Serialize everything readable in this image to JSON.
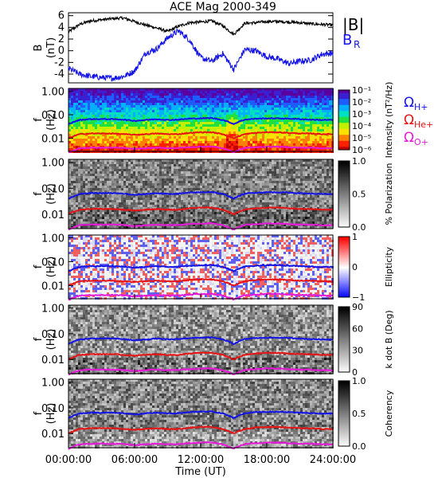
{
  "chart_data": [
    {
      "type": "line",
      "title": "ACE Mag 2000-349",
      "ylabel": "B (nT)",
      "ylim": [
        -5.5,
        6.5
      ],
      "yticks": [
        6,
        4,
        2,
        0,
        -2,
        -4
      ],
      "x_hours": [
        0,
        6,
        12,
        18,
        24
      ],
      "series": [
        {
          "name": "|B|",
          "color": "#000000",
          "x": [
            0,
            1,
            2,
            3,
            4,
            5,
            6,
            7,
            8,
            9,
            10,
            11,
            12,
            13,
            14,
            15,
            16,
            17,
            18,
            19,
            20,
            21,
            22,
            23,
            24
          ],
          "values": [
            3.2,
            4.5,
            5.1,
            5.3,
            5.5,
            5.6,
            5.0,
            4.4,
            3.9,
            3.3,
            4.2,
            4.8,
            4.9,
            5.1,
            4.3,
            2.8,
            4.7,
            4.8,
            5.0,
            5.0,
            4.9,
            4.8,
            4.6,
            4.5,
            4.4
          ]
        },
        {
          "name": "B",
          "label_sub": "R",
          "color": "#1414e6",
          "x": [
            0,
            1,
            2,
            3,
            4,
            5,
            6,
            7,
            8,
            9,
            10,
            11,
            12,
            13,
            14,
            15,
            16,
            17,
            18,
            19,
            20,
            21,
            22,
            23,
            24
          ],
          "values": [
            -3.0,
            -4.0,
            -4.4,
            -4.6,
            -4.7,
            -4.4,
            -3.5,
            -0.4,
            0.3,
            2.2,
            3.4,
            1.8,
            -1.2,
            -1.8,
            -0.5,
            -3.2,
            0.2,
            0.0,
            -1.0,
            -1.4,
            -2.2,
            -1.8,
            -1.6,
            -0.6,
            -0.4
          ]
        }
      ]
    },
    {
      "type": "heatmap",
      "ylabel": "f (Hz)",
      "yticks": [
        "1.00",
        "0.10",
        "0.01"
      ],
      "colorbar": {
        "label": "Intensity (nT²/Hz)",
        "ticks": [
          "10⁻¹",
          "10⁻²",
          "10⁻³",
          "10⁻⁴",
          "10⁻⁵",
          "10⁻⁶"
        ],
        "scale": "rainbow"
      },
      "legend": [
        {
          "symbol": "Ω",
          "sub": "H+",
          "color": "#1414e6"
        },
        {
          "symbol": "Ω",
          "sub": "He+",
          "color": "#e61414"
        },
        {
          "symbol": "Ω",
          "sub": "O+",
          "color": "#e619d9"
        }
      ]
    },
    {
      "type": "heatmap",
      "ylabel": "f (Hz)",
      "yticks": [
        "1.00",
        "0.10",
        "0.01"
      ],
      "colorbar": {
        "label": "% Polarization",
        "ticks": [
          "1.0",
          "0.5",
          "0.0"
        ],
        "scale": "grayscale"
      }
    },
    {
      "type": "heatmap",
      "ylabel": "f (Hz)",
      "yticks": [
        "1.00",
        "0.10",
        "0.01"
      ],
      "colorbar": {
        "label": "Ellipticity",
        "ticks": [
          "1",
          "0",
          "−1"
        ],
        "scale": "blue-white-red"
      }
    },
    {
      "type": "heatmap",
      "ylabel": "f (Hz)",
      "yticks": [
        "1.00",
        "0.10",
        "0.01"
      ],
      "colorbar": {
        "label": "k dot B (Deg)",
        "ticks": [
          "90",
          "60",
          "30",
          "0"
        ],
        "scale": "grayscale"
      }
    },
    {
      "type": "heatmap",
      "ylabel": "f (Hz)",
      "yticks": [
        "1.00",
        "0.10",
        "0.01"
      ],
      "colorbar": {
        "label": "Coherency",
        "ticks": [
          "1.0",
          "0.5",
          "0.0"
        ],
        "scale": "grayscale"
      }
    }
  ],
  "xaxis": {
    "ticks": [
      "00:00:00",
      "06:00:00",
      "12:00:00",
      "18:00:00",
      "24:00:00"
    ],
    "label": "Time (UT)"
  },
  "gyro_lines": {
    "x": [
      0,
      1,
      2,
      3,
      4,
      5,
      6,
      7,
      8,
      9,
      10,
      11,
      12,
      13,
      14,
      15,
      16,
      17,
      18,
      19,
      20,
      21,
      22,
      23,
      24
    ],
    "H": [
      0.04,
      0.06,
      0.065,
      0.065,
      0.065,
      0.062,
      0.055,
      0.06,
      0.065,
      0.06,
      0.062,
      0.068,
      0.07,
      0.072,
      0.06,
      0.04,
      0.062,
      0.068,
      0.07,
      0.07,
      0.068,
      0.065,
      0.062,
      0.06,
      0.06
    ],
    "He": [
      0.01,
      0.015,
      0.016,
      0.016,
      0.016,
      0.015,
      0.014,
      0.015,
      0.016,
      0.015,
      0.015,
      0.017,
      0.018,
      0.018,
      0.015,
      0.01,
      0.015,
      0.017,
      0.018,
      0.018,
      0.017,
      0.016,
      0.016,
      0.015,
      0.015
    ],
    "O": [
      0.0025,
      0.0038,
      0.004,
      0.004,
      0.004,
      0.0039,
      0.0035,
      0.0038,
      0.004,
      0.0038,
      0.0039,
      0.0042,
      0.0044,
      0.0045,
      0.0038,
      0.0026,
      0.0039,
      0.0042,
      0.0044,
      0.0044,
      0.0042,
      0.004,
      0.004,
      0.0038,
      0.0038
    ]
  },
  "colors": {
    "H": "#1414e6",
    "He": "#e61414",
    "O": "#e619d9",
    "absB": "#000000",
    "BR": "#1414e6"
  }
}
